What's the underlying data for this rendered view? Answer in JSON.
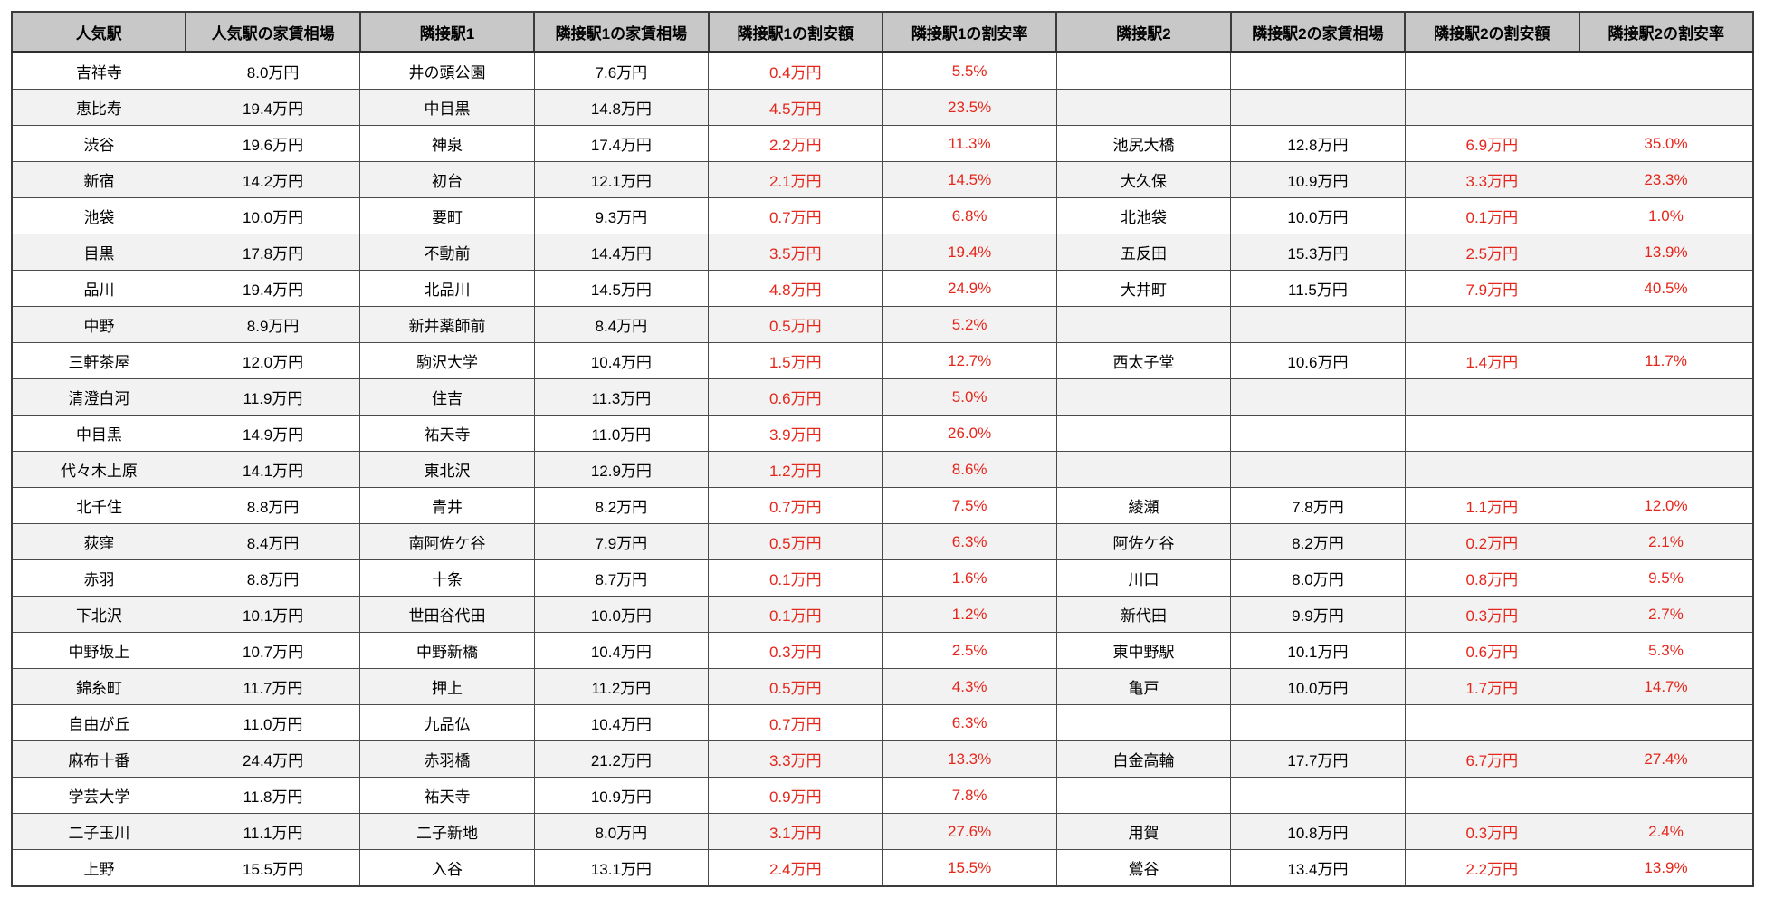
{
  "chart_data": {
    "type": "table",
    "title": "",
    "columns": [
      "人気駅",
      "人気駅の家賃相場",
      "隣接駅1",
      "隣接駅1の家賃相場",
      "隣接駅1の割安額",
      "隣接駅1の割安率",
      "隣接駅2",
      "隣接駅2の家賃相場",
      "隣接駅2の割安額",
      "隣接駅2の割安率"
    ],
    "red_columns": [
      4,
      5,
      8,
      9
    ],
    "rows": [
      [
        "吉祥寺",
        "8.0万円",
        "井の頭公園",
        "7.6万円",
        "0.4万円",
        "5.5%",
        "",
        "",
        "",
        ""
      ],
      [
        "恵比寿",
        "19.4万円",
        "中目黒",
        "14.8万円",
        "4.5万円",
        "23.5%",
        "",
        "",
        "",
        ""
      ],
      [
        "渋谷",
        "19.6万円",
        "神泉",
        "17.4万円",
        "2.2万円",
        "11.3%",
        "池尻大橋",
        "12.8万円",
        "6.9万円",
        "35.0%"
      ],
      [
        "新宿",
        "14.2万円",
        "初台",
        "12.1万円",
        "2.1万円",
        "14.5%",
        "大久保",
        "10.9万円",
        "3.3万円",
        "23.3%"
      ],
      [
        "池袋",
        "10.0万円",
        "要町",
        "9.3万円",
        "0.7万円",
        "6.8%",
        "北池袋",
        "10.0万円",
        "0.1万円",
        "1.0%"
      ],
      [
        "目黒",
        "17.8万円",
        "不動前",
        "14.4万円",
        "3.5万円",
        "19.4%",
        "五反田",
        "15.3万円",
        "2.5万円",
        "13.9%"
      ],
      [
        "品川",
        "19.4万円",
        "北品川",
        "14.5万円",
        "4.8万円",
        "24.9%",
        "大井町",
        "11.5万円",
        "7.9万円",
        "40.5%"
      ],
      [
        "中野",
        "8.9万円",
        "新井薬師前",
        "8.4万円",
        "0.5万円",
        "5.2%",
        "",
        "",
        "",
        ""
      ],
      [
        "三軒茶屋",
        "12.0万円",
        "駒沢大学",
        "10.4万円",
        "1.5万円",
        "12.7%",
        "西太子堂",
        "10.6万円",
        "1.4万円",
        "11.7%"
      ],
      [
        "清澄白河",
        "11.9万円",
        "住吉",
        "11.3万円",
        "0.6万円",
        "5.0%",
        "",
        "",
        "",
        ""
      ],
      [
        "中目黒",
        "14.9万円",
        "祐天寺",
        "11.0万円",
        "3.9万円",
        "26.0%",
        "",
        "",
        "",
        ""
      ],
      [
        "代々木上原",
        "14.1万円",
        "東北沢",
        "12.9万円",
        "1.2万円",
        "8.6%",
        "",
        "",
        "",
        ""
      ],
      [
        "北千住",
        "8.8万円",
        "青井",
        "8.2万円",
        "0.7万円",
        "7.5%",
        "綾瀬",
        "7.8万円",
        "1.1万円",
        "12.0%"
      ],
      [
        "荻窪",
        "8.4万円",
        "南阿佐ケ谷",
        "7.9万円",
        "0.5万円",
        "6.3%",
        "阿佐ケ谷",
        "8.2万円",
        "0.2万円",
        "2.1%"
      ],
      [
        "赤羽",
        "8.8万円",
        "十条",
        "8.7万円",
        "0.1万円",
        "1.6%",
        "川口",
        "8.0万円",
        "0.8万円",
        "9.5%"
      ],
      [
        "下北沢",
        "10.1万円",
        "世田谷代田",
        "10.0万円",
        "0.1万円",
        "1.2%",
        "新代田",
        "9.9万円",
        "0.3万円",
        "2.7%"
      ],
      [
        "中野坂上",
        "10.7万円",
        "中野新橋",
        "10.4万円",
        "0.3万円",
        "2.5%",
        "東中野駅",
        "10.1万円",
        "0.6万円",
        "5.3%"
      ],
      [
        "錦糸町",
        "11.7万円",
        "押上",
        "11.2万円",
        "0.5万円",
        "4.3%",
        "亀戸",
        "10.0万円",
        "1.7万円",
        "14.7%"
      ],
      [
        "自由が丘",
        "11.0万円",
        "九品仏",
        "10.4万円",
        "0.7万円",
        "6.3%",
        "",
        "",
        "",
        ""
      ],
      [
        "麻布十番",
        "24.4万円",
        "赤羽橋",
        "21.2万円",
        "3.3万円",
        "13.3%",
        "白金高輪",
        "17.7万円",
        "6.7万円",
        "27.4%"
      ],
      [
        "学芸大学",
        "11.8万円",
        "祐天寺",
        "10.9万円",
        "0.9万円",
        "7.8%",
        "",
        "",
        "",
        ""
      ],
      [
        "二子玉川",
        "11.1万円",
        "二子新地",
        "8.0万円",
        "3.1万円",
        "27.6%",
        "用賀",
        "10.8万円",
        "0.3万円",
        "2.4%"
      ],
      [
        "上野",
        "15.5万円",
        "入谷",
        "13.1万円",
        "2.4万円",
        "15.5%",
        "鶯谷",
        "13.4万円",
        "2.2万円",
        "13.9%"
      ]
    ],
    "layout": {
      "header_bg": "#c8c8c8",
      "stripe_bg": "#f2f2f2",
      "row_bg": "#ffffff",
      "border_color": "#3c3c3c",
      "discount_text_color": "#e5261b",
      "grid": true,
      "legend": false
    }
  }
}
